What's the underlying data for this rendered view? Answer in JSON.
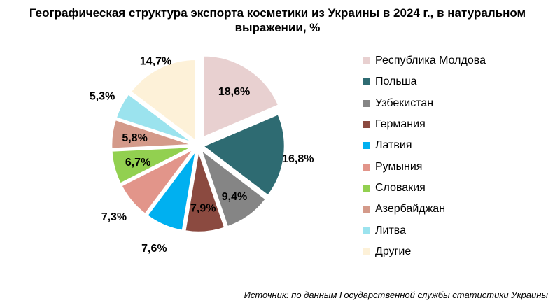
{
  "chart_data": {
    "type": "pie",
    "title": {
      "line1": "Географическая структура экспорта косметики из Украины в 2024 г., в натуральном",
      "line2": "выражении, %"
    },
    "slices": [
      {
        "label": "Республика Молдова",
        "value": 18.6,
        "display": "18,6%",
        "color": "#E8D0D0"
      },
      {
        "label": "Польша",
        "value": 16.8,
        "display": "16,8%",
        "color": "#2E6B72"
      },
      {
        "label": "Узбекистан",
        "value": 9.4,
        "display": "9,4%",
        "color": "#858585"
      },
      {
        "label": "Германия",
        "value": 7.9,
        "display": "7,9%",
        "color": "#8B4A40"
      },
      {
        "label": "Латвия",
        "value": 7.6,
        "display": "7,6%",
        "color": "#00B0F0"
      },
      {
        "label": "Румыния",
        "value": 7.3,
        "display": "7,3%",
        "color": "#E2958A"
      },
      {
        "label": "Словакия",
        "value": 6.7,
        "display": "6,7%",
        "color": "#92D050"
      },
      {
        "label": "Азербайджан",
        "value": 5.8,
        "display": "5,8%",
        "color": "#D49A8A"
      },
      {
        "label": "Литва",
        "value": 5.3,
        "display": "5,3%",
        "color": "#9BE3EE"
      },
      {
        "label": "Другие",
        "value": 14.7,
        "display": "14,7%",
        "color": "#FDF1D8"
      }
    ],
    "legend_position": "right",
    "exploded": true
  },
  "source": "Источник: по данным Государственной службы статистики Украины"
}
